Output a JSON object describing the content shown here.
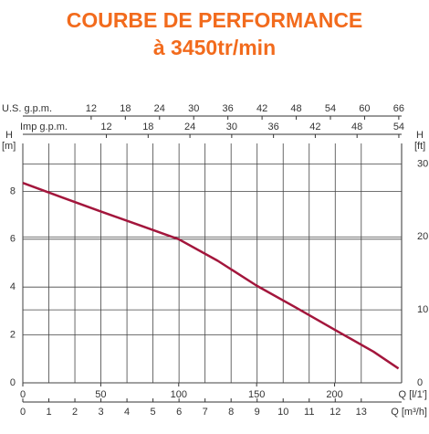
{
  "chart_data": {
    "type": "line",
    "title": "COURBE DE PERFORMANCE",
    "subtitle": "à 3450tr/min",
    "x_label": "Q [l/1']",
    "xlim": [
      0,
      243
    ],
    "xticks": [
      0,
      50,
      100,
      150,
      200
    ],
    "x2_label": "Q [m³/h]",
    "x2lim": [
      0,
      14.55
    ],
    "x2ticks": [
      0,
      1,
      2,
      3,
      4,
      5,
      6,
      7,
      8,
      9,
      10,
      11,
      12,
      13
    ],
    "top1_label": "U.S. g.p.m.",
    "top1lim": [
      0,
      66.5
    ],
    "top1ticks": [
      12,
      18,
      24,
      30,
      36,
      42,
      48,
      54,
      60,
      66
    ],
    "top2_label": "Imp g.p.m.",
    "top2lim": [
      0,
      54.4
    ],
    "top2ticks": [
      12,
      18,
      24,
      30,
      36,
      42,
      48,
      54
    ],
    "y_label": "H",
    "y_unit": "[m]",
    "ylim": [
      0,
      10
    ],
    "yticks": [
      0,
      2,
      4,
      6,
      8
    ],
    "y2_label": "H",
    "y2_unit": "[ft]",
    "y2lim": [
      0,
      32.8
    ],
    "y2ticks": [
      0,
      10,
      20,
      30
    ],
    "grid": true,
    "x": [
      0,
      25,
      50,
      75,
      100,
      125,
      150,
      175,
      200,
      225,
      241
    ],
    "series": [
      {
        "color": "#a3163c",
        "values": [
          8.35,
          7.75,
          7.16,
          6.58,
          6.0,
          5.1,
          4.06,
          3.15,
          2.22,
          1.3,
          0.6
        ]
      }
    ]
  }
}
